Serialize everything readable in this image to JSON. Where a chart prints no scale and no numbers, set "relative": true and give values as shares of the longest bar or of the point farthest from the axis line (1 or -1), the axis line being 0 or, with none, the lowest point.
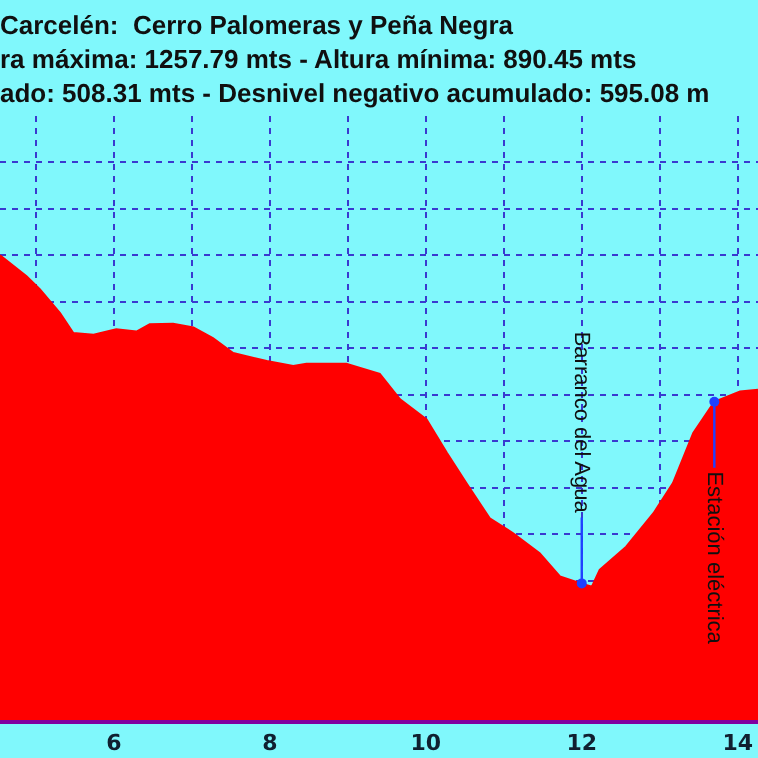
{
  "chart_data": {
    "type": "area",
    "title": "Carcelén:  Cerro Palomeras y Peña Negra\nra máxima: 1257.79 mts - Altura mínima: 890.45 mts\nado: 508.31 mts - Desnivel negativo acumulado: 595.08 m",
    "relative": true,
    "tick_labels": "x",
    "grid": true,
    "xlim": [
      4.54,
      14.26
    ],
    "xticks": [
      {
        "value": 5,
        "label": null
      },
      6,
      {
        "value": 7,
        "label": null
      },
      8,
      {
        "value": 9,
        "label": null
      },
      10,
      {
        "value": 11,
        "label": null
      },
      12,
      {
        "value": 13,
        "label": null
      },
      14
    ],
    "series": [
      {
        "color": "#ff0000",
        "x": [
          4.54,
          4.88,
          5.05,
          5.31,
          5.48,
          5.74,
          6.03,
          6.29,
          6.46,
          6.76,
          7.02,
          7.27,
          7.53,
          7.7,
          7.96,
          8.3,
          8.47,
          8.98,
          9.41,
          9.67,
          10.01,
          10.27,
          10.52,
          10.82,
          11.12,
          11.46,
          11.72,
          11.99,
          12.13,
          12.23,
          12.57,
          12.92,
          13.17,
          13.43,
          13.7,
          14.03,
          14.26
        ],
        "values": [
          1.0,
          0.955,
          0.927,
          0.876,
          0.833,
          0.829,
          0.841,
          0.836,
          0.852,
          0.853,
          0.845,
          0.822,
          0.79,
          0.783,
          0.773,
          0.762,
          0.767,
          0.767,
          0.745,
          0.69,
          0.647,
          0.575,
          0.51,
          0.434,
          0.402,
          0.359,
          0.309,
          0.294,
          0.287,
          0.323,
          0.373,
          0.445,
          0.51,
          0.618,
          0.685,
          0.707,
          0.711
        ]
      }
    ],
    "annotations": [
      {
        "text": "Barranco del Agua",
        "x": 12,
        "y": 0.294
      },
      {
        "text": "Estación eléctrica",
        "x": 13.7,
        "y": 0.685
      }
    ]
  }
}
